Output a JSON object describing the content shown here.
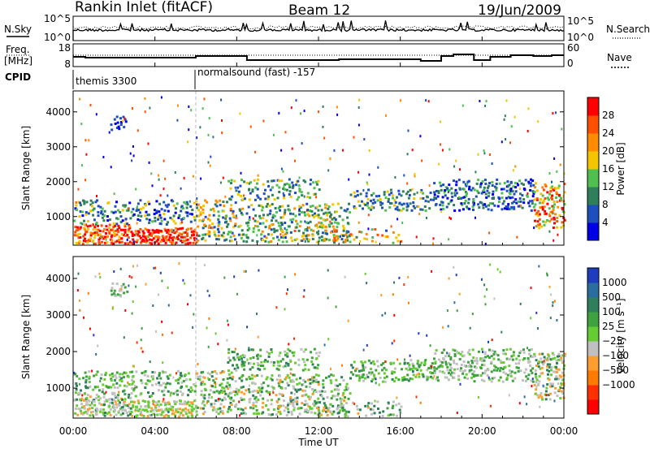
{
  "header": {
    "station": "Rankin Inlet (fitACF)",
    "beam": "Beam 12",
    "date": "19/Jun/2009"
  },
  "top_panels": {
    "nsky_label": "N.Sky",
    "nsky_ticks": [
      "10^5",
      "10^0"
    ],
    "nsearch_label": "N.Search",
    "nsearch_ticks": [
      "10^5",
      "10^0"
    ],
    "freq_label_1": "Freq.",
    "freq_label_2": "[MHz]",
    "freq_ticks": [
      "18",
      "8"
    ],
    "nave_label": "Nave",
    "nave_ticks": [
      "60",
      "0"
    ],
    "cpid_label": "CPID",
    "cpid_segments": [
      {
        "name": "themis 3300",
        "start_hour": 0
      },
      {
        "name": "normalsound (fast) -157",
        "start_hour": 6
      }
    ]
  },
  "chart_data": [
    {
      "type": "heatmap",
      "name": "power-panel",
      "ylabel": "Slant Range [km]",
      "ylim": [
        180,
        4600
      ],
      "yticks": [
        "1000",
        "2000",
        "3000",
        "4000"
      ],
      "xlim_hours": [
        0,
        24
      ],
      "colorbar_label": "Power [dB]",
      "colorbar_ticks": [
        "28",
        "24",
        "20",
        "16",
        "12",
        "8",
        "4"
      ],
      "colorbar_colors": [
        "#0000e6",
        "#1e4fbf",
        "#2f7f5a",
        "#4fbf4f",
        "#f5c400",
        "#ff8c00",
        "#ff5000",
        "#ff0000"
      ]
    },
    {
      "type": "heatmap",
      "name": "velocity-panel",
      "ylabel": "Slant Range [km]",
      "ylim": [
        180,
        4600
      ],
      "yticks": [
        "1000",
        "2000",
        "3000",
        "4000"
      ],
      "xlim_hours": [
        0,
        24
      ],
      "xticks": [
        "00:00",
        "04:00",
        "08:00",
        "12:00",
        "16:00",
        "20:00",
        "00:00"
      ],
      "xlabel": "Time UT",
      "colorbar_label": "Velocity [m s⁻¹]",
      "colorbar_ticks": [
        "1000",
        "500",
        "100",
        "25",
        "−25",
        "−100",
        "−500",
        "−1000"
      ],
      "colorbar_colors": [
        "#1e3cbe",
        "#2a6ea0",
        "#2f7f5a",
        "#3ea23e",
        "#66cc33",
        "#c0c0c0",
        "#ff9d2e",
        "#ff7a00",
        "#ff3000",
        "#ff0000"
      ]
    }
  ]
}
